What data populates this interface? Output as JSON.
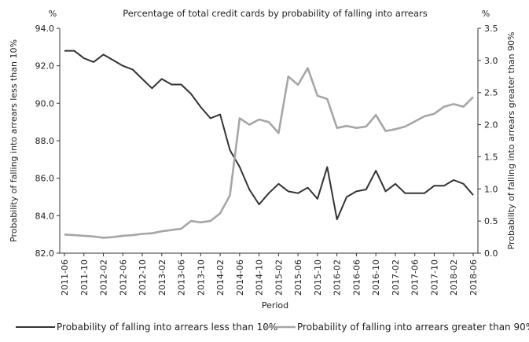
{
  "chart_data": {
    "type": "line",
    "title": "Percentage of total credit cards by probability of falling into arrears",
    "xlabel": "Period",
    "ylabel_left": "Probability of falling into arrears less than 10%",
    "ylabel_right": "Probability of falling into arrears greater than 90%",
    "unit_left": "%",
    "unit_right": "%",
    "ylim_left": [
      82.0,
      94.0
    ],
    "ylim_right": [
      0.0,
      3.5
    ],
    "yticks_left": [
      "82.0",
      "84.0",
      "86.0",
      "88.0",
      "90.0",
      "92.0",
      "94.0"
    ],
    "yticks_right": [
      "0.0",
      "0.5",
      "1.0",
      "1.5",
      "2.0",
      "2.5",
      "3.0",
      "3.5"
    ],
    "grid": false,
    "legend_position": "bottom",
    "x_tick_labels": [
      "2011-06",
      "2011-10",
      "2012-02",
      "2012-06",
      "2012-10",
      "2013-02",
      "2013-06",
      "2013-10",
      "2014-02",
      "2014-06",
      "2014-10",
      "2015-02",
      "2015-06",
      "2015-10",
      "2016-02",
      "2016-06",
      "2016-10",
      "2017-02",
      "2017-06",
      "2017-10",
      "2018-02",
      "2018-06"
    ],
    "x": [
      "2011-06",
      "2011-08",
      "2011-10",
      "2011-12",
      "2012-02",
      "2012-04",
      "2012-06",
      "2012-08",
      "2012-10",
      "2012-12",
      "2013-02",
      "2013-04",
      "2013-06",
      "2013-08",
      "2013-10",
      "2013-12",
      "2014-02",
      "2014-04",
      "2014-06",
      "2014-08",
      "2014-10",
      "2014-12",
      "2015-02",
      "2015-04",
      "2015-06",
      "2015-08",
      "2015-10",
      "2015-12",
      "2016-02",
      "2016-04",
      "2016-06",
      "2016-08",
      "2016-10",
      "2016-12",
      "2017-02",
      "2017-04",
      "2017-06",
      "2017-08",
      "2017-10",
      "2017-12",
      "2018-02",
      "2018-04",
      "2018-06"
    ],
    "series": [
      {
        "name": "Probability of falling into arrears less than 10%",
        "axis": "left",
        "color": "#333333",
        "values": [
          92.8,
          92.8,
          92.4,
          92.2,
          92.6,
          92.3,
          92.0,
          91.8,
          91.3,
          90.8,
          91.3,
          91.0,
          91.0,
          90.5,
          89.8,
          89.2,
          89.4,
          87.5,
          86.6,
          85.4,
          84.6,
          85.2,
          85.7,
          85.3,
          85.2,
          85.5,
          84.9,
          86.6,
          83.8,
          85.0,
          85.3,
          85.4,
          86.4,
          85.3,
          85.7,
          85.2,
          85.2,
          85.2,
          85.6,
          85.6,
          85.9,
          85.7,
          85.1
        ]
      },
      {
        "name": "Probability of falling into arrears greater than 90%",
        "axis": "right",
        "color": "#a6a6a6",
        "values": [
          0.29,
          0.28,
          0.27,
          0.26,
          0.24,
          0.25,
          0.27,
          0.28,
          0.3,
          0.31,
          0.34,
          0.36,
          0.38,
          0.5,
          0.48,
          0.5,
          0.62,
          0.9,
          2.1,
          2.0,
          2.08,
          2.04,
          1.87,
          2.75,
          2.62,
          2.88,
          2.45,
          2.4,
          1.95,
          1.98,
          1.95,
          1.97,
          2.15,
          1.9,
          1.93,
          1.97,
          2.05,
          2.13,
          2.17,
          2.28,
          2.32,
          2.28,
          2.43
        ]
      }
    ]
  }
}
